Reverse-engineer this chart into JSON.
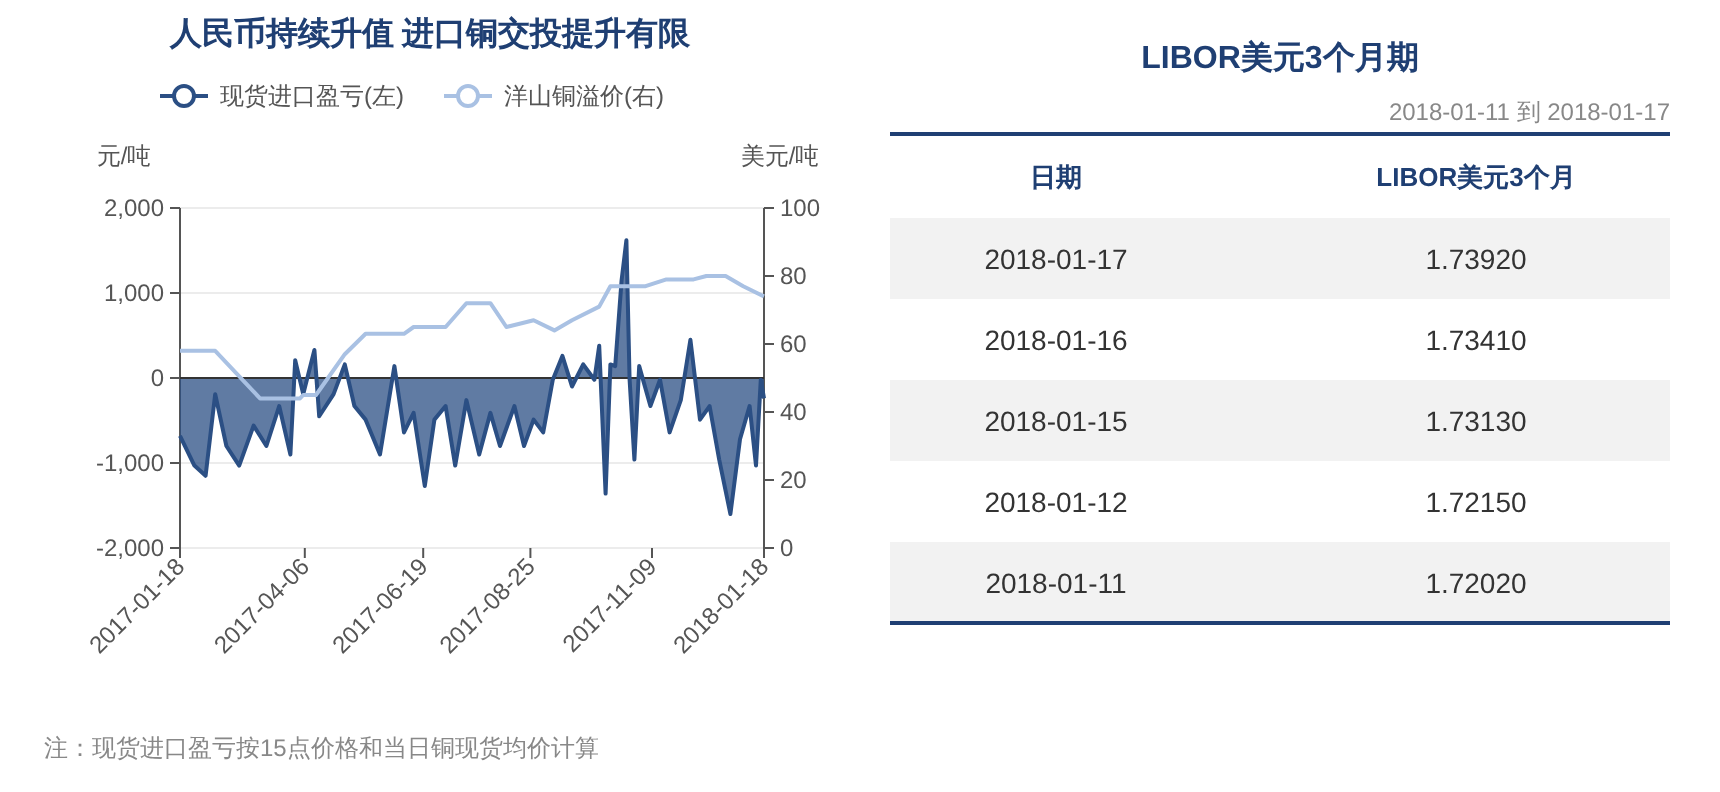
{
  "chart_data": [
    {
      "type": "line",
      "title": "人民币持续升值 进口铜交投提升有限",
      "ylabel": "元/吨",
      "y2label": "美元/吨",
      "xlim": [
        "2017-01-18",
        "2018-01-18"
      ],
      "xticks": [
        "2017-01-18",
        "2017-04-06",
        "2017-06-19",
        "2017-08-25",
        "2017-11-09",
        "2018-01-18"
      ],
      "ylim": [
        -2000,
        2000
      ],
      "yticks": [
        {
          "value": -2000,
          "label": "-2,000"
        },
        {
          "value": -1000,
          "label": "-1,000"
        },
        0,
        {
          "value": 1000,
          "label": "1,000"
        },
        {
          "value": 2000,
          "label": "2,000"
        }
      ],
      "y2lim": [
        0,
        100
      ],
      "y2ticks": [
        0,
        20,
        40,
        60,
        80,
        100
      ],
      "grid": "y",
      "legend": "top",
      "annotations": [
        "注：现货进口盈亏按15点价格和当日铜现货均价计算"
      ],
      "series": [
        {
          "name": "现货进口盈亏(左)",
          "type": "area",
          "color": "#2b4f84",
          "x": [
            "2017-01-18",
            "2017-01-27",
            "2017-02-03",
            "2017-02-09",
            "2017-02-16",
            "2017-02-24",
            "2017-03-05",
            "2017-03-13",
            "2017-03-21",
            "2017-03-28",
            "2017-03-31",
            "2017-04-05",
            "2017-04-12",
            "2017-04-15",
            "2017-04-24",
            "2017-05-01",
            "2017-05-07",
            "2017-05-14",
            "2017-05-23",
            "2017-06-01",
            "2017-06-07",
            "2017-06-13",
            "2017-06-20",
            "2017-06-26",
            "2017-07-03",
            "2017-07-09",
            "2017-07-16",
            "2017-07-24",
            "2017-07-31",
            "2017-08-06",
            "2017-08-15",
            "2017-08-21",
            "2017-08-27",
            "2017-09-02",
            "2017-09-08",
            "2017-09-14",
            "2017-09-20",
            "2017-09-27",
            "2017-10-04",
            "2017-10-07",
            "2017-10-11",
            "2017-10-14",
            "2017-10-17",
            "2017-10-21",
            "2017-10-24",
            "2017-10-26",
            "2017-10-29",
            "2017-11-01",
            "2017-11-08",
            "2017-11-14",
            "2017-11-20",
            "2017-11-27",
            "2017-12-03",
            "2017-12-09",
            "2017-12-15",
            "2017-12-21",
            "2017-12-28",
            "2018-01-03",
            "2018-01-09",
            "2018-01-13",
            "2018-01-16",
            "2018-01-18"
          ],
          "values": [
            -680,
            -1030,
            -1150,
            -190,
            -800,
            -1030,
            -560,
            -800,
            -330,
            -900,
            210,
            -190,
            330,
            -450,
            -190,
            160,
            -330,
            -490,
            -900,
            140,
            -640,
            -410,
            -1270,
            -490,
            -330,
            -1030,
            -260,
            -900,
            -410,
            -800,
            -330,
            -800,
            -490,
            -640,
            -20,
            260,
            -100,
            160,
            -20,
            380,
            -1360,
            160,
            140,
            1150,
            1620,
            -20,
            -960,
            140,
            -330,
            -20,
            -640,
            -260,
            450,
            -490,
            -330,
            -960,
            -1600,
            -720,
            -330,
            -1030,
            -20,
            -240
          ]
        },
        {
          "name": "洋山铜溢价(右)",
          "type": "line",
          "axis": "y2",
          "color": "#a9c1e3",
          "x": [
            "2017-01-18",
            "2017-02-09",
            "2017-03-09",
            "2017-04-03",
            "2017-04-05",
            "2017-04-13",
            "2017-05-01",
            "2017-05-14",
            "2017-06-07",
            "2017-06-13",
            "2017-07-03",
            "2017-07-16",
            "2017-07-31",
            "2017-08-10",
            "2017-08-27",
            "2017-09-09",
            "2017-09-20",
            "2017-10-07",
            "2017-10-14",
            "2017-11-05",
            "2017-11-18",
            "2017-12-05",
            "2017-12-13",
            "2017-12-25",
            "2018-01-05",
            "2018-01-18"
          ],
          "values": [
            58,
            58,
            44,
            44,
            45,
            45,
            57,
            63,
            63,
            65,
            65,
            72,
            72,
            65,
            67,
            64,
            67,
            71,
            77,
            77,
            79,
            79,
            80,
            80,
            77,
            74
          ]
        }
      ]
    },
    {
      "type": "other",
      "title": "LIBOR美元3个月期",
      "subtitle": "2018-01-11 到 2018-01-17",
      "xlabel": "日期",
      "ylabel": "LIBOR美元3个月",
      "categories": [
        "2018-01-17",
        "2018-01-16",
        "2018-01-15",
        "2018-01-12",
        "2018-01-11"
      ],
      "value_labels": [
        "1.73920",
        "1.73410",
        "1.73130",
        "1.72150",
        "1.72020"
      ]
    }
  ]
}
